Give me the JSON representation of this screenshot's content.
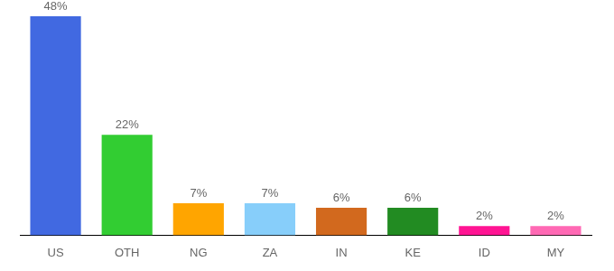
{
  "chart_data": {
    "type": "bar",
    "categories": [
      "US",
      "OTH",
      "NG",
      "ZA",
      "IN",
      "KE",
      "ID",
      "MY"
    ],
    "values": [
      48,
      22,
      7,
      7,
      6,
      6,
      2,
      2
    ],
    "value_labels": [
      "48%",
      "22%",
      "7%",
      "7%",
      "6%",
      "6%",
      "2%",
      "2%"
    ],
    "colors": [
      "#4169e1",
      "#32cd32",
      "#ffa500",
      "#87cefa",
      "#d2691e",
      "#228b22",
      "#ff1493",
      "#ff69b4"
    ],
    "ylim": [
      0,
      50
    ],
    "grid": false,
    "data_labels": true,
    "tick_labels": "x"
  }
}
